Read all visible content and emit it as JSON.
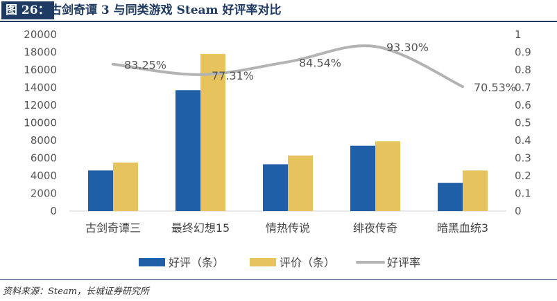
{
  "title": {
    "label": "图 26：",
    "text": "古剑奇谭 3 与同类游戏 Steam 好评率对比"
  },
  "source": "资料来源：Steam，长城证券研究所",
  "chart_data": {
    "type": "bar",
    "categories": [
      "古剑奇谭三",
      "最终幻想15",
      "情热传说",
      "绯夜传奇",
      "暗黑血统3"
    ],
    "series": [
      {
        "name": "好评（条）",
        "kind": "bar",
        "axis": "left",
        "color": "#1f5fa8",
        "values": [
          4600,
          13700,
          5300,
          7400,
          3200
        ]
      },
      {
        "name": "评价（条）",
        "kind": "bar",
        "axis": "left",
        "color": "#e6c35c",
        "values": [
          5500,
          17800,
          6300,
          7900,
          4600
        ]
      },
      {
        "name": "好评率",
        "kind": "line",
        "axis": "right",
        "color": "#b3b3b3",
        "values": [
          0.8325,
          0.7731,
          0.8454,
          0.933,
          0.7053
        ],
        "labels": [
          "83.25%",
          "77.31%",
          "84.54%",
          "93.30%",
          "70.53%"
        ]
      }
    ],
    "y_left": {
      "min": 0,
      "max": 20000,
      "ticks": [
        "0",
        "2000",
        "4000",
        "6000",
        "8000",
        "10000",
        "12000",
        "14000",
        "16000",
        "18000",
        "20000"
      ]
    },
    "y_right": {
      "min": 0,
      "max": 1,
      "ticks": [
        "0",
        "0.1",
        "0.2",
        "0.3",
        "0.4",
        "0.5",
        "0.6",
        "0.7",
        "0.8",
        "0.9",
        "1"
      ]
    },
    "legend_position": "bottom",
    "grid": false
  }
}
